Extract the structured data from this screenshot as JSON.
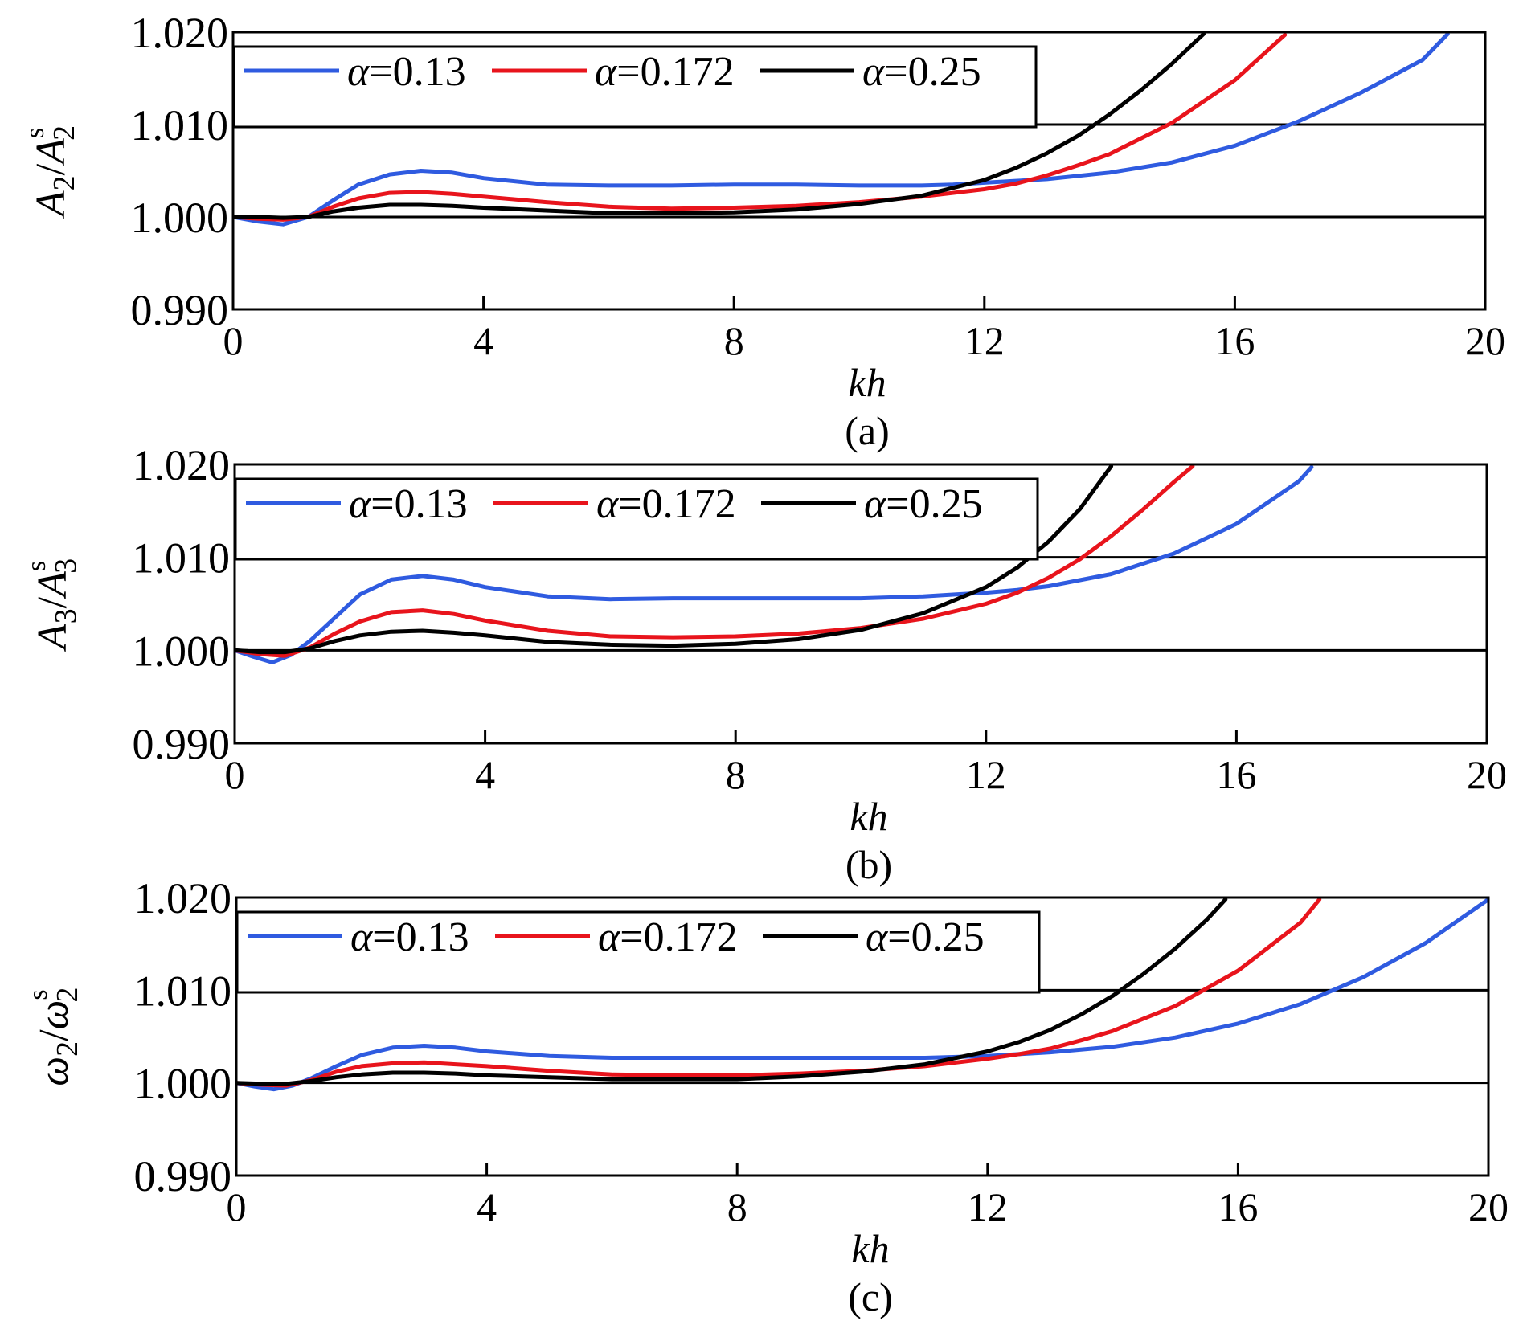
{
  "chart_data": [
    {
      "type": "line",
      "panel_label": "(a)",
      "xlabel": "kh",
      "ylabel": {
        "base": "A",
        "sub": "2",
        "sep": "/",
        "base2": "A",
        "sup2": "s",
        "sub2": "2"
      },
      "xlim": [
        0,
        20
      ],
      "ylim": [
        0.99,
        1.02
      ],
      "xticks": [
        0,
        4,
        8,
        12,
        16,
        20
      ],
      "xtick_labels": [
        "0",
        "4",
        "8",
        "12",
        "16",
        "20"
      ],
      "yticks": [
        0.99,
        1.0,
        1.01,
        1.02
      ],
      "ytick_labels": [
        "0.990",
        "1.000",
        "1.010",
        "1.020"
      ],
      "reference_lines": [
        1.0,
        1.01
      ],
      "legend": {
        "placement": "top-left"
      },
      "series": [
        {
          "name": "α=0.13",
          "legend_symbol": "α",
          "legend_value": "=0.13",
          "color": "#2f5be0",
          "x": [
            0,
            0.4,
            0.8,
            1.2,
            1.6,
            2.0,
            2.5,
            3.0,
            3.5,
            4.0,
            5.0,
            6.0,
            7.0,
            8.0,
            9.0,
            10.0,
            11.0,
            11.5,
            12.0,
            12.5,
            13.0,
            14.0,
            15.0,
            16.0,
            17.0,
            18.0,
            19.0,
            19.4
          ],
          "y": [
            1.0,
            0.9995,
            0.9992,
            1.0,
            1.0018,
            1.0035,
            1.0046,
            1.005,
            1.0048,
            1.0042,
            1.0035,
            1.0034,
            1.0034,
            1.0035,
            1.0035,
            1.0034,
            1.0034,
            1.0035,
            1.0037,
            1.0039,
            1.0041,
            1.0048,
            1.0059,
            1.0077,
            1.0103,
            1.0134,
            1.017,
            1.0198
          ]
        },
        {
          "name": "α=0.172",
          "legend_symbol": "α",
          "legend_value": "=0.172",
          "color": "#e8141c",
          "x": [
            0,
            0.4,
            0.8,
            1.2,
            1.6,
            2.0,
            2.5,
            3.0,
            3.5,
            4.0,
            5.0,
            6.0,
            7.0,
            8.0,
            9.0,
            10.0,
            11.0,
            12.0,
            12.5,
            13.0,
            13.5,
            14.0,
            15.0,
            16.0,
            16.8
          ],
          "y": [
            1.0,
            0.9998,
            0.9997,
            1.0,
            1.0011,
            1.002,
            1.0026,
            1.0027,
            1.0025,
            1.0022,
            1.0016,
            1.0011,
            1.0009,
            1.001,
            1.0012,
            1.0016,
            1.0022,
            1.003,
            1.0036,
            1.0045,
            1.0056,
            1.0068,
            1.0102,
            1.0148,
            1.0197
          ]
        },
        {
          "name": "α=0.25",
          "legend_symbol": "α",
          "legend_value": "=0.25",
          "color": "#000000",
          "x": [
            0,
            0.4,
            0.8,
            1.2,
            1.6,
            2.0,
            2.5,
            3.0,
            3.5,
            4.0,
            5.0,
            6.0,
            7.0,
            8.0,
            9.0,
            10.0,
            11.0,
            12.0,
            12.5,
            13.0,
            13.5,
            14.0,
            14.5,
            15.0,
            15.5
          ],
          "y": [
            1.0,
            1.0,
            0.9999,
            1.0,
            1.0006,
            1.001,
            1.0013,
            1.0013,
            1.0012,
            1.001,
            1.0007,
            1.0004,
            1.0004,
            1.0005,
            1.0008,
            1.0014,
            1.0023,
            1.004,
            1.0053,
            1.0069,
            1.0088,
            1.0111,
            1.0137,
            1.0166,
            1.0198
          ]
        }
      ]
    },
    {
      "type": "line",
      "panel_label": "(b)",
      "xlabel": "kh",
      "ylabel": {
        "base": "A",
        "sub": "3",
        "sep": "/",
        "base2": "A",
        "sup2": "s",
        "sub2": "3"
      },
      "xlim": [
        0,
        20
      ],
      "ylim": [
        0.99,
        1.02
      ],
      "xticks": [
        0,
        4,
        8,
        12,
        16,
        20
      ],
      "xtick_labels": [
        "0",
        "4",
        "8",
        "12",
        "16",
        "20"
      ],
      "yticks": [
        0.99,
        1.0,
        1.01,
        1.02
      ],
      "ytick_labels": [
        "0.990",
        "1.000",
        "1.010",
        "1.020"
      ],
      "reference_lines": [
        1.0,
        1.01
      ],
      "legend": {
        "placement": "top-left"
      },
      "series": [
        {
          "name": "α=0.13",
          "legend_symbol": "α",
          "legend_value": "=0.13",
          "color": "#2f5be0",
          "x": [
            0,
            0.3,
            0.6,
            0.9,
            1.2,
            1.6,
            2.0,
            2.5,
            3.0,
            3.5,
            4.0,
            5.0,
            6.0,
            7.0,
            8.0,
            9.0,
            10.0,
            11.0,
            11.5,
            12.0,
            12.5,
            13.0,
            14.0,
            15.0,
            16.0,
            17.0,
            17.2
          ],
          "y": [
            1.0,
            0.9993,
            0.9987,
            0.9995,
            1.001,
            1.0035,
            1.006,
            1.0076,
            1.008,
            1.0076,
            1.0068,
            1.0058,
            1.0055,
            1.0056,
            1.0056,
            1.0056,
            1.0056,
            1.0058,
            1.006,
            1.0062,
            1.0065,
            1.0069,
            1.0082,
            1.0104,
            1.0136,
            1.0182,
            1.0197
          ]
        },
        {
          "name": "α=0.172",
          "legend_symbol": "α",
          "legend_value": "=0.172",
          "color": "#e8141c",
          "x": [
            0,
            0.4,
            0.8,
            1.2,
            1.6,
            2.0,
            2.5,
            3.0,
            3.5,
            4.0,
            5.0,
            6.0,
            7.0,
            8.0,
            9.0,
            10.0,
            11.0,
            12.0,
            12.5,
            13.0,
            13.5,
            14.0,
            14.5,
            15.0,
            15.3
          ],
          "y": [
            1.0,
            0.9996,
            0.9994,
            1.0003,
            1.0018,
            1.0031,
            1.0041,
            1.0043,
            1.0039,
            1.0032,
            1.0021,
            1.0015,
            1.0014,
            1.0015,
            1.0018,
            1.0024,
            1.0034,
            1.005,
            1.0062,
            1.0078,
            1.0098,
            1.0123,
            1.0151,
            1.0181,
            1.0198
          ]
        },
        {
          "name": "α=0.25",
          "legend_symbol": "α",
          "legend_value": "=0.25",
          "color": "#000000",
          "x": [
            0,
            0.4,
            0.8,
            1.2,
            1.6,
            2.0,
            2.5,
            3.0,
            3.5,
            4.0,
            5.0,
            6.0,
            7.0,
            8.0,
            9.0,
            10.0,
            11.0,
            12.0,
            12.5,
            13.0,
            13.5,
            14.0
          ],
          "y": [
            1.0,
            0.9998,
            0.9998,
            1.0002,
            1.001,
            1.0016,
            1.002,
            1.0021,
            1.0019,
            1.0016,
            1.0009,
            1.0006,
            1.0005,
            1.0007,
            1.0012,
            1.0022,
            1.004,
            1.0068,
            1.0089,
            1.0117,
            1.0152,
            1.0198
          ]
        }
      ]
    },
    {
      "type": "line",
      "panel_label": "(c)",
      "xlabel": "kh",
      "ylabel": {
        "base": "ω",
        "sub": "2",
        "sep": "/",
        "base2": "ω",
        "sup2": "s",
        "sub2": "2"
      },
      "xlim": [
        0,
        20
      ],
      "ylim": [
        0.99,
        1.02
      ],
      "xticks": [
        0,
        4,
        8,
        12,
        16,
        20
      ],
      "xtick_labels": [
        "0",
        "4",
        "8",
        "12",
        "16",
        "20"
      ],
      "yticks": [
        0.99,
        1.0,
        1.01,
        1.02
      ],
      "ytick_labels": [
        "0.990",
        "1.000",
        "1.010",
        "1.020"
      ],
      "reference_lines": [
        1.0,
        1.01
      ],
      "legend": {
        "placement": "top-left"
      },
      "series": [
        {
          "name": "α=0.13",
          "legend_symbol": "α",
          "legend_value": "=0.13",
          "color": "#2f5be0",
          "x": [
            0,
            0.3,
            0.6,
            0.9,
            1.2,
            1.6,
            2.0,
            2.5,
            3.0,
            3.5,
            4.0,
            5.0,
            6.0,
            7.0,
            8.0,
            9.0,
            10.0,
            11.0,
            12.0,
            12.5,
            13.0,
            14.0,
            15.0,
            16.0,
            17.0,
            18.0,
            19.0,
            20.0
          ],
          "y": [
            1.0,
            0.9996,
            0.9993,
            0.9997,
            1.0005,
            1.0018,
            1.003,
            1.0038,
            1.004,
            1.0038,
            1.0034,
            1.0029,
            1.0027,
            1.0027,
            1.0027,
            1.0027,
            1.0027,
            1.0027,
            1.0029,
            1.0031,
            1.0033,
            1.0039,
            1.0049,
            1.0064,
            1.0085,
            1.0114,
            1.0151,
            1.0198
          ]
        },
        {
          "name": "α=0.172",
          "legend_symbol": "α",
          "legend_value": "=0.172",
          "color": "#e8141c",
          "x": [
            0,
            0.4,
            0.8,
            1.2,
            1.6,
            2.0,
            2.5,
            3.0,
            3.5,
            4.0,
            5.0,
            6.0,
            7.0,
            8.0,
            9.0,
            10.0,
            11.0,
            12.0,
            12.5,
            13.0,
            13.5,
            14.0,
            15.0,
            16.0,
            17.0,
            17.3
          ],
          "y": [
            1.0,
            0.9998,
            0.9997,
            1.0003,
            1.0012,
            1.0018,
            1.0021,
            1.0022,
            1.002,
            1.0018,
            1.0013,
            1.0009,
            1.0008,
            1.0008,
            1.001,
            1.0013,
            1.0018,
            1.0026,
            1.0031,
            1.0037,
            1.0046,
            1.0056,
            1.0083,
            1.0121,
            1.0173,
            1.0198
          ]
        },
        {
          "name": "α=0.25",
          "legend_symbol": "α",
          "legend_value": "=0.25",
          "color": "#000000",
          "x": [
            0,
            0.4,
            0.8,
            1.2,
            1.6,
            2.0,
            2.5,
            3.0,
            3.5,
            4.0,
            5.0,
            6.0,
            7.0,
            8.0,
            9.0,
            10.0,
            11.0,
            12.0,
            12.5,
            13.0,
            13.5,
            14.0,
            14.5,
            15.0,
            15.5,
            15.8
          ],
          "y": [
            1.0,
            0.9999,
            0.9999,
            1.0002,
            1.0006,
            1.0009,
            1.0011,
            1.0011,
            1.001,
            1.0008,
            1.0006,
            1.0004,
            1.0004,
            1.0004,
            1.0007,
            1.0012,
            1.002,
            1.0034,
            1.0044,
            1.0057,
            1.0074,
            1.0094,
            1.0118,
            1.0145,
            1.0176,
            1.0198
          ]
        }
      ]
    }
  ]
}
